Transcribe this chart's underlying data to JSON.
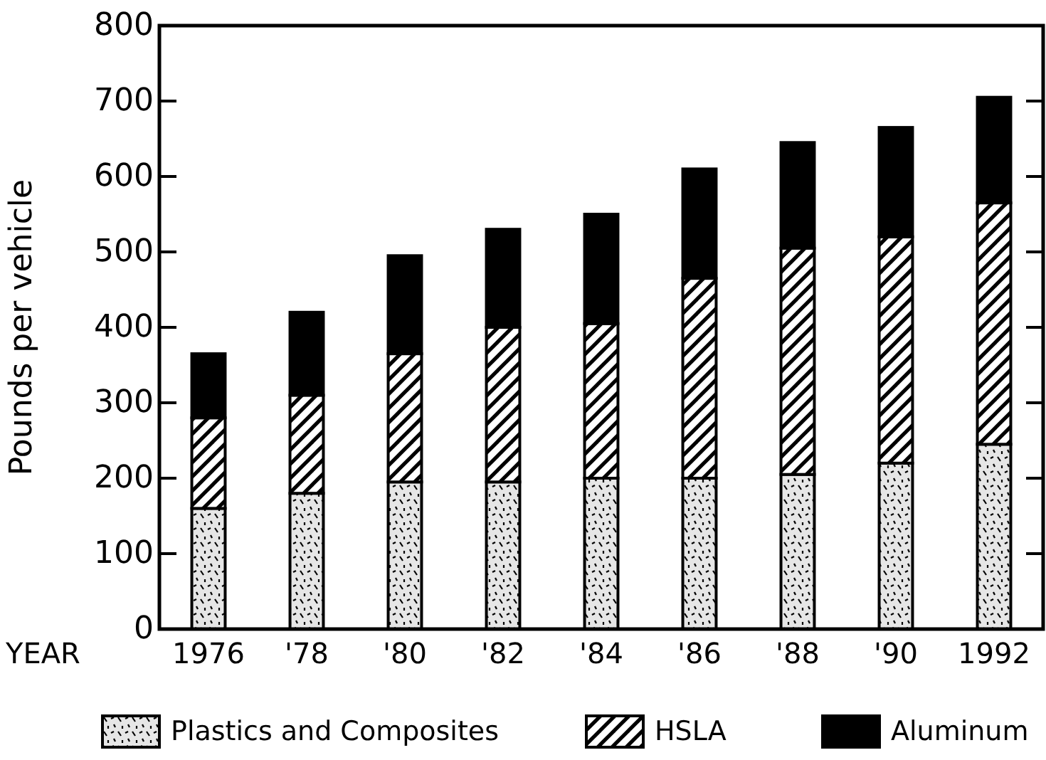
{
  "chart_data": {
    "type": "bar",
    "stacked": true,
    "xlabel": "YEAR",
    "ylabel": "Pounds per vehicle",
    "categories": [
      "1976",
      "'78",
      "'80",
      "'82",
      "'84",
      "'86",
      "'88",
      "'90",
      "1992"
    ],
    "series": [
      {
        "name": "Plastics and Composites",
        "color": "#e6e6e6",
        "values": [
          160,
          180,
          195,
          195,
          200,
          200,
          205,
          220,
          245
        ]
      },
      {
        "name": "HSLA",
        "color": "#808080",
        "values": [
          120,
          130,
          170,
          205,
          205,
          265,
          300,
          300,
          320
        ]
      },
      {
        "name": "Aluminum",
        "color": "#000000",
        "values": [
          85,
          110,
          130,
          130,
          145,
          145,
          140,
          145,
          140
        ]
      }
    ],
    "ylim": [
      0,
      800
    ],
    "yticks": [
      0,
      100,
      200,
      300,
      400,
      500,
      600,
      700,
      800
    ],
    "grid": false,
    "legend": "bottom"
  }
}
